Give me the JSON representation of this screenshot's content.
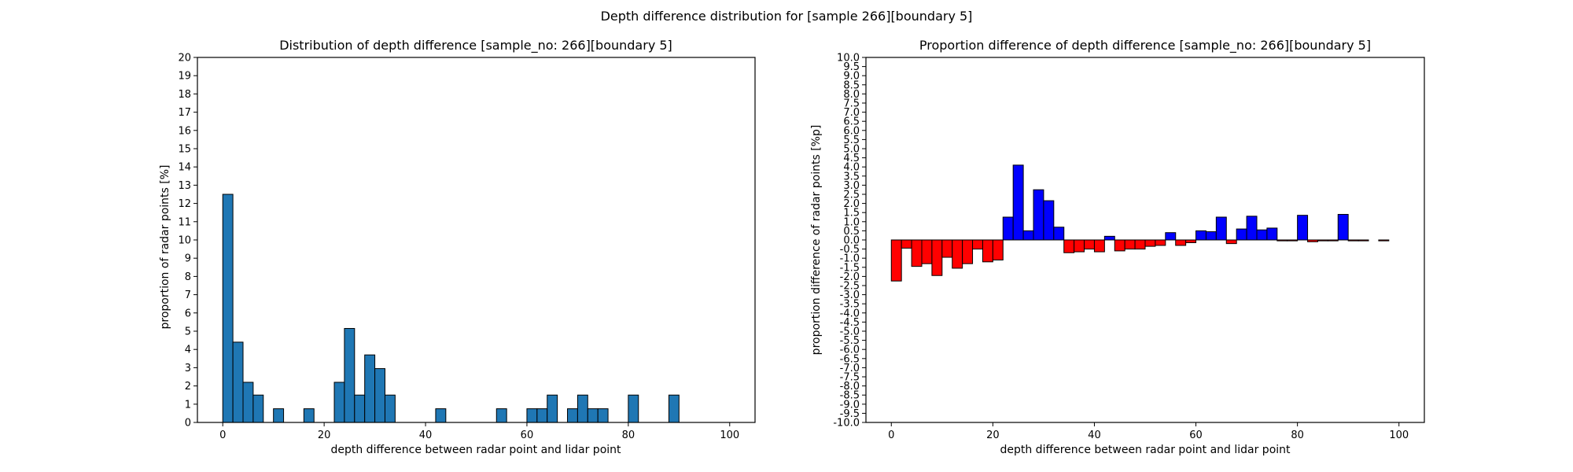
{
  "figure": {
    "suptitle": "Depth difference distribution for [sample 266][boundary 5]"
  },
  "chart_data": [
    {
      "type": "bar",
      "title": "Distribution of depth difference [sample_no: 266][boundary 5]",
      "xlabel": "depth difference between radar point and lidar point",
      "ylabel": "proportion of radar points [%]",
      "xlim": [
        -5,
        105
      ],
      "ylim": [
        0,
        20
      ],
      "xticks": [
        0,
        20,
        40,
        60,
        80,
        100
      ],
      "yticks": [
        0,
        1,
        2,
        3,
        4,
        5,
        6,
        7,
        8,
        9,
        10,
        11,
        12,
        13,
        14,
        15,
        16,
        17,
        18,
        19,
        20
      ],
      "bin_width": 2,
      "bin_starts": [
        0,
        2,
        4,
        6,
        8,
        10,
        12,
        14,
        16,
        18,
        20,
        22,
        24,
        26,
        28,
        30,
        32,
        34,
        36,
        38,
        40,
        42,
        44,
        46,
        48,
        50,
        52,
        54,
        56,
        58,
        60,
        62,
        64,
        66,
        68,
        70,
        72,
        74,
        76,
        78,
        80,
        82,
        84,
        86,
        88,
        90,
        92,
        94,
        96,
        98
      ],
      "values": [
        12.5,
        4.4,
        2.2,
        1.5,
        0,
        0.75,
        0,
        0,
        0.75,
        0,
        0,
        2.2,
        5.15,
        1.5,
        3.7,
        2.95,
        1.5,
        0,
        0,
        0,
        0,
        0.75,
        0,
        0,
        0,
        0,
        0,
        0.75,
        0,
        0,
        0.75,
        0.75,
        1.5,
        0,
        0.75,
        1.5,
        0.75,
        0.75,
        0,
        0,
        1.5,
        0,
        0,
        0,
        1.5,
        0,
        0,
        0,
        0,
        0
      ],
      "bar_color": "#1f77b4",
      "edge_color": "#000000",
      "grid": false
    },
    {
      "type": "bar",
      "title": "Proportion difference of depth difference [sample_no: 266][boundary 5]",
      "xlabel": "depth difference between radar point and lidar point",
      "ylabel": "proportion difference of radar points [%p]",
      "xlim": [
        -5,
        105
      ],
      "ylim": [
        -10,
        10
      ],
      "xticks": [
        0,
        20,
        40,
        60,
        80,
        100
      ],
      "yticks": [
        "-10.0",
        "-9.5",
        "-9.0",
        "-8.5",
        "-8.0",
        "-7.5",
        "-7.0",
        "-6.5",
        "-6.0",
        "-5.5",
        "-5.0",
        "-4.5",
        "-4.0",
        "-3.5",
        "-3.0",
        "-2.5",
        "-2.0",
        "-1.5",
        "-1.0",
        "-0.5",
        "0.0",
        "0.5",
        "1.0",
        "1.5",
        "2.0",
        "2.5",
        "3.0",
        "3.5",
        "4.0",
        "4.5",
        "5.0",
        "5.5",
        "6.0",
        "6.5",
        "7.0",
        "7.5",
        "8.0",
        "8.5",
        "9.0",
        "9.5",
        "10.0"
      ],
      "bin_width": 2,
      "bin_starts": [
        0,
        2,
        4,
        6,
        8,
        10,
        12,
        14,
        16,
        18,
        20,
        22,
        24,
        26,
        28,
        30,
        32,
        34,
        36,
        38,
        40,
        42,
        44,
        46,
        48,
        50,
        52,
        54,
        56,
        58,
        60,
        62,
        64,
        66,
        68,
        70,
        72,
        74,
        76,
        78,
        80,
        82,
        84,
        86,
        88,
        90,
        92,
        94,
        96,
        98
      ],
      "values": [
        -2.25,
        -0.45,
        -1.45,
        -1.3,
        -1.95,
        -0.95,
        -1.55,
        -1.3,
        -0.5,
        -1.2,
        -1.1,
        1.25,
        4.1,
        0.5,
        2.75,
        2.15,
        0.7,
        -0.7,
        -0.65,
        -0.5,
        -0.65,
        0.2,
        -0.6,
        -0.5,
        -0.5,
        -0.35,
        -0.3,
        0.4,
        -0.3,
        -0.15,
        0.5,
        0.45,
        1.25,
        -0.2,
        0.6,
        1.3,
        0.55,
        0.65,
        -0.05,
        -0.05,
        1.35,
        -0.1,
        -0.05,
        -0.05,
        1.4,
        -0.05,
        -0.05,
        0.0,
        -0.05,
        0.0
      ],
      "positive_color": "#0000ff",
      "negative_color": "#ff0000",
      "edge_color": "#000000",
      "grid": false
    }
  ]
}
